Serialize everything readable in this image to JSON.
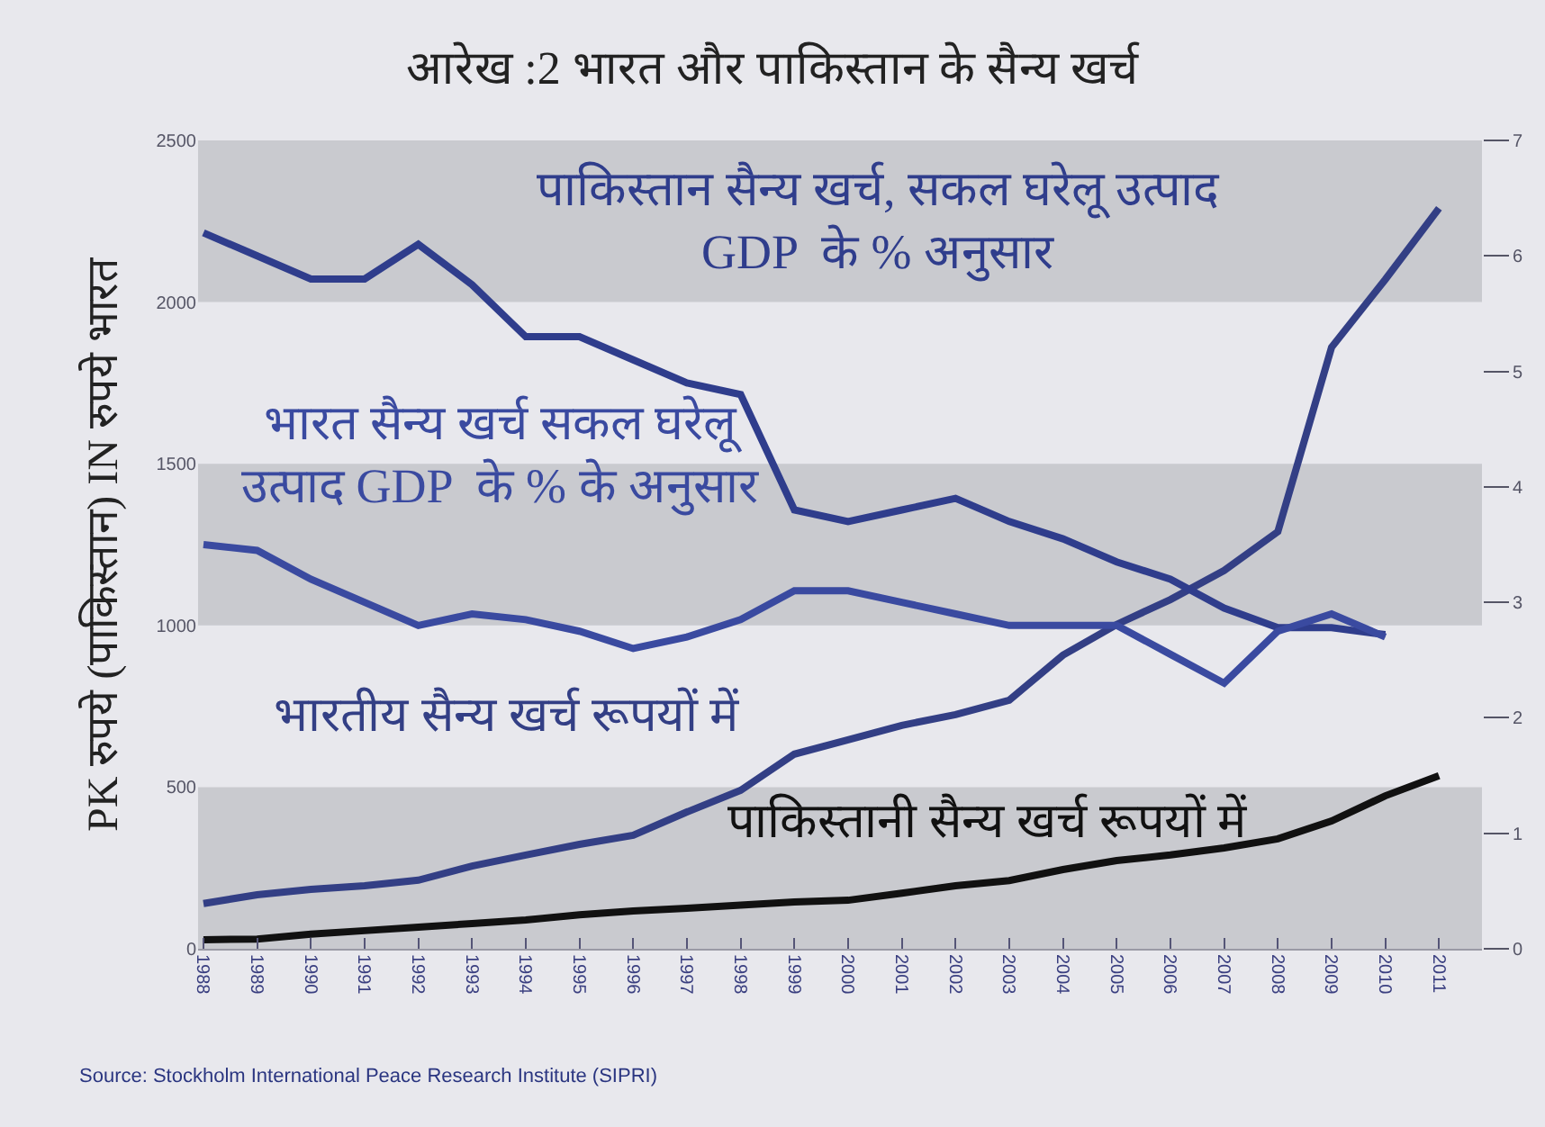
{
  "chart_data": {
    "type": "line",
    "title": "आरेख :2 भारत और पाकिस्तान के सैन्य खर्च",
    "ylabel": "PK रुपये (पाकिस्तान) IN रुपये भारत",
    "x": [
      1988,
      1989,
      1990,
      1991,
      1992,
      1993,
      1994,
      1995,
      1996,
      1997,
      1998,
      1999,
      2000,
      2001,
      2002,
      2003,
      2004,
      2005,
      2006,
      2007,
      2008,
      2009,
      2010,
      2011
    ],
    "xlim": [
      1987.9,
      2011.8
    ],
    "xticks": [
      1988,
      1989,
      1990,
      1991,
      1992,
      1993,
      1994,
      1995,
      1996,
      1997,
      1998,
      1999,
      2000,
      2001,
      2002,
      2003,
      2004,
      2005,
      2006,
      2007,
      2008,
      2009,
      2010,
      2011
    ],
    "ylim": [
      0,
      2500
    ],
    "yticks": [
      0,
      500,
      1000,
      1500,
      2000,
      2500
    ],
    "y2lim": [
      0,
      7
    ],
    "y2ticks": [
      0,
      1,
      2,
      3,
      4,
      5,
      6,
      7
    ],
    "grid": false,
    "legend": false,
    "marker": "none",
    "line_style": "solid",
    "series": [
      {
        "name": "पाकिस्तान सैन्य खर्च, सकल घरेलू उत्पाद\nGDP  के % अनुसार",
        "color": "#2f3d8c",
        "axis": "y2",
        "values": [
          6.2,
          6.0,
          5.8,
          5.8,
          6.1,
          5.75,
          5.3,
          5.3,
          5.1,
          4.9,
          4.8,
          3.8,
          3.7,
          3.8,
          3.9,
          3.7,
          3.55,
          3.35,
          3.2,
          2.95,
          2.78,
          2.78,
          2.72,
          null
        ]
      },
      {
        "name": "भारत सैन्य खर्च सकल घरेलू\nउत्पाद GDP  के % के अनुसार",
        "color": "#3a4aa0",
        "axis": "y2",
        "values": [
          3.5,
          3.45,
          3.2,
          3.0,
          2.8,
          2.9,
          2.85,
          2.75,
          2.6,
          2.7,
          2.85,
          3.1,
          3.1,
          3.0,
          2.9,
          2.8,
          2.8,
          2.8,
          2.55,
          2.3,
          2.75,
          2.9,
          2.7,
          null
        ]
      },
      {
        "name": "भारतीय सैन्य खर्च रूपयों में",
        "color": "#333f85",
        "values": [
          140,
          167,
          184,
          195,
          212,
          256,
          290,
          323,
          351,
          423,
          490,
          602,
          646,
          691,
          724,
          769,
          908,
          1003,
          1080,
          1170,
          1290,
          1860,
          2070,
          2290
        ]
      },
      {
        "name": "पाकिस्तानी सैन्य खर्च रूपयों में",
        "color": "#111111",
        "values": [
          28,
          30,
          45,
          56,
          67,
          78,
          89,
          105,
          117,
          125,
          135,
          145,
          150,
          172,
          195,
          211,
          245,
          273,
          290,
          312,
          340,
          395,
          473,
          535
        ]
      }
    ],
    "bands": [
      {
        "axis": "y",
        "from": 0,
        "to": 500,
        "color": "#c9cacf"
      },
      {
        "axis": "y",
        "from": 1000,
        "to": 1500,
        "color": "#c9cacf"
      },
      {
        "axis": "y",
        "from": 2000,
        "to": 2500,
        "color": "#c9cacf"
      }
    ],
    "annotations": [
      "Source: Stockholm International Peace Research Institute (SIPRI)"
    ]
  }
}
